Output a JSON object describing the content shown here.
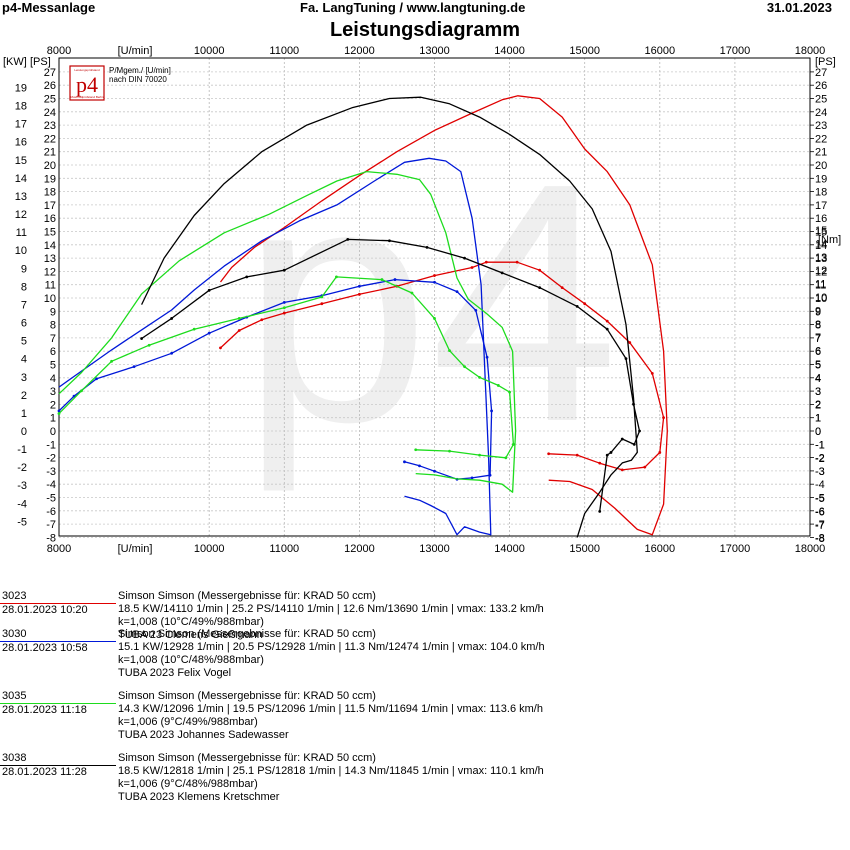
{
  "header": {
    "left": "p4-Messanlage",
    "center": "Fa. LangTuning /   www.langtuning.de",
    "date": "31.01.2023",
    "title": "Leistungsdiagramm"
  },
  "logo": {
    "mark": "p4",
    "line1": "P/Mgem./ [U/min]",
    "line2": "nach DIN 70020",
    "small_top": "Leistungsprüfstand",
    "small_bottom": "Motorradprüfstand Berlin"
  },
  "watermark": "p4",
  "colors": {
    "red": "#e00000",
    "blue": "#0018d8",
    "green": "#1ddc1d",
    "black": "#000000"
  },
  "chart_data": {
    "type": "line",
    "x_unit_label": "[U/min]",
    "xlim": [
      8000,
      18000
    ],
    "x_ticks": [
      8000,
      10000,
      11000,
      12000,
      13000,
      14000,
      15000,
      16000,
      17000,
      18000
    ],
    "left_kw_label": "[KW]",
    "left_ps_label": "[PS]",
    "right_ps_label": "[PS]",
    "right_nm_label": "[Nm]",
    "kw_ticks": [
      -5,
      -4,
      -3,
      -2,
      -1,
      0,
      1,
      2,
      3,
      4,
      5,
      6,
      7,
      8,
      9,
      10,
      11,
      12,
      13,
      14,
      15,
      16,
      17,
      18,
      19
    ],
    "ps_ticks": [
      -8,
      -7,
      -6,
      -5,
      -4,
      -3,
      -2,
      -1,
      0,
      1,
      2,
      3,
      4,
      5,
      6,
      7,
      8,
      9,
      10,
      11,
      12,
      13,
      14,
      15,
      16,
      17,
      18,
      19,
      20,
      21,
      22,
      23,
      24,
      25,
      26,
      27
    ],
    "right_ps_ticks": [
      -8,
      -7,
      -6,
      -5,
      -4,
      -3,
      -2,
      -1,
      0,
      1,
      2,
      3,
      4,
      5,
      6,
      7,
      8,
      9,
      10,
      11,
      12,
      13,
      14,
      15,
      16,
      17,
      18,
      19,
      20,
      21,
      22,
      23,
      24,
      25,
      26,
      27
    ],
    "nm_ticks": [
      -8,
      -7,
      -6,
      -5,
      -3,
      -2,
      -1,
      0,
      1,
      2,
      3,
      4,
      5,
      6,
      7,
      8,
      9,
      10,
      11,
      12,
      13,
      14,
      15
    ],
    "grid": true,
    "series": [
      {
        "name": "3023",
        "color": "#e00000",
        "power_ps": [
          [
            10150,
            11.2
          ],
          [
            10300,
            12.3
          ],
          [
            10600,
            13.8
          ],
          [
            11000,
            15.3
          ],
          [
            11500,
            17.3
          ],
          [
            12000,
            19.2
          ],
          [
            12500,
            21.0
          ],
          [
            13000,
            22.6
          ],
          [
            13500,
            23.9
          ],
          [
            13900,
            24.9
          ],
          [
            14110,
            25.2
          ],
          [
            14400,
            25.0
          ],
          [
            14700,
            23.6
          ],
          [
            15000,
            21.2
          ],
          [
            15300,
            19.5
          ],
          [
            15600,
            17.0
          ],
          [
            15900,
            12.5
          ],
          [
            16050,
            6.0
          ],
          [
            16100,
            0.0
          ],
          [
            16050,
            -5.5
          ],
          [
            15900,
            -7.8
          ],
          [
            15700,
            -7.4
          ],
          [
            15400,
            -5.8
          ],
          [
            15100,
            -4.4
          ],
          [
            14800,
            -3.8
          ],
          [
            14520,
            -3.7
          ]
        ],
        "torque_nm": [
          [
            10150,
            6.2
          ],
          [
            10400,
            7.5
          ],
          [
            10700,
            8.3
          ],
          [
            11000,
            8.8
          ],
          [
            11500,
            9.5
          ],
          [
            12000,
            10.2
          ],
          [
            12500,
            10.8
          ],
          [
            13000,
            11.6
          ],
          [
            13500,
            12.2
          ],
          [
            13690,
            12.6
          ],
          [
            14100,
            12.6
          ],
          [
            14400,
            12.0
          ],
          [
            14700,
            10.7
          ],
          [
            15000,
            9.5
          ],
          [
            15300,
            8.2
          ],
          [
            15600,
            6.6
          ],
          [
            15900,
            4.3
          ],
          [
            16050,
            1.0
          ],
          [
            16000,
            -1.6
          ],
          [
            15800,
            -2.7
          ],
          [
            15500,
            -2.9
          ],
          [
            15200,
            -2.4
          ],
          [
            14900,
            -1.8
          ],
          [
            14520,
            -1.7
          ]
        ]
      },
      {
        "name": "3030",
        "color": "#0018d8",
        "power_ps": [
          [
            8000,
            3.3
          ],
          [
            8300,
            4.5
          ],
          [
            8700,
            6.1
          ],
          [
            9100,
            7.6
          ],
          [
            9500,
            9.1
          ],
          [
            9800,
            10.6
          ],
          [
            10200,
            12.4
          ],
          [
            10700,
            14.3
          ],
          [
            11200,
            15.8
          ],
          [
            11700,
            17.0
          ],
          [
            12200,
            18.8
          ],
          [
            12600,
            20.2
          ],
          [
            12928,
            20.5
          ],
          [
            13150,
            20.3
          ],
          [
            13350,
            19.5
          ],
          [
            13500,
            16.0
          ],
          [
            13620,
            11.0
          ],
          [
            13720,
            -2.0
          ],
          [
            13750,
            -7.8
          ],
          [
            13600,
            -7.6
          ],
          [
            13400,
            -7.2
          ],
          [
            13300,
            -7.8
          ],
          [
            13150,
            -6.2
          ],
          [
            12950,
            -5.6
          ],
          [
            12800,
            -5.2
          ],
          [
            12600,
            -4.9
          ]
        ],
        "torque_nm": [
          [
            8000,
            1.5
          ],
          [
            8200,
            2.6
          ],
          [
            8500,
            3.9
          ],
          [
            9000,
            4.8
          ],
          [
            9500,
            5.8
          ],
          [
            10000,
            7.3
          ],
          [
            10500,
            8.5
          ],
          [
            11000,
            9.6
          ],
          [
            11500,
            10.1
          ],
          [
            12000,
            10.8
          ],
          [
            12474,
            11.3
          ],
          [
            13000,
            11.1
          ],
          [
            13300,
            10.4
          ],
          [
            13550,
            9.0
          ],
          [
            13700,
            5.5
          ],
          [
            13760,
            1.5
          ],
          [
            13740,
            -3.3
          ],
          [
            13500,
            -3.5
          ],
          [
            13300,
            -3.6
          ],
          [
            13000,
            -3.0
          ],
          [
            12800,
            -2.6
          ],
          [
            12600,
            -2.3
          ]
        ]
      },
      {
        "name": "3035",
        "color": "#1ddc1d",
        "power_ps": [
          [
            8000,
            2.8
          ],
          [
            8300,
            4.4
          ],
          [
            8700,
            7.0
          ],
          [
            9100,
            10.3
          ],
          [
            9600,
            12.8
          ],
          [
            10200,
            14.9
          ],
          [
            10800,
            16.3
          ],
          [
            11300,
            17.7
          ],
          [
            11700,
            18.8
          ],
          [
            12096,
            19.5
          ],
          [
            12500,
            19.3
          ],
          [
            12800,
            18.9
          ],
          [
            12950,
            17.8
          ],
          [
            13150,
            14.9
          ],
          [
            13300,
            11.5
          ],
          [
            13450,
            9.9
          ],
          [
            13700,
            8.8
          ],
          [
            13900,
            7.8
          ],
          [
            14040,
            6.0
          ],
          [
            14080,
            0.0
          ],
          [
            14040,
            -4.6
          ],
          [
            13900,
            -4.0
          ],
          [
            13600,
            -3.7
          ],
          [
            13300,
            -3.6
          ],
          [
            13000,
            -3.3
          ],
          [
            12750,
            -3.2
          ]
        ],
        "torque_nm": [
          [
            8000,
            1.3
          ],
          [
            8300,
            3.0
          ],
          [
            8700,
            5.2
          ],
          [
            9200,
            6.4
          ],
          [
            9800,
            7.6
          ],
          [
            10400,
            8.4
          ],
          [
            11000,
            9.2
          ],
          [
            11500,
            10.0
          ],
          [
            11694,
            11.5
          ],
          [
            12300,
            11.3
          ],
          [
            12700,
            10.3
          ],
          [
            13000,
            8.4
          ],
          [
            13200,
            6.0
          ],
          [
            13400,
            4.8
          ],
          [
            13600,
            4.0
          ],
          [
            13850,
            3.4
          ],
          [
            14000,
            2.9
          ],
          [
            14050,
            -1.0
          ],
          [
            13950,
            -2.0
          ],
          [
            13600,
            -1.8
          ],
          [
            13200,
            -1.5
          ],
          [
            12750,
            -1.4
          ]
        ]
      },
      {
        "name": "3038",
        "color": "#000000",
        "power_ps": [
          [
            9100,
            9.5
          ],
          [
            9400,
            13.0
          ],
          [
            9800,
            16.2
          ],
          [
            10200,
            18.6
          ],
          [
            10700,
            21.0
          ],
          [
            11300,
            23.0
          ],
          [
            11900,
            24.3
          ],
          [
            12400,
            25.0
          ],
          [
            12818,
            25.1
          ],
          [
            13200,
            24.6
          ],
          [
            13600,
            23.6
          ],
          [
            14000,
            22.3
          ],
          [
            14400,
            20.8
          ],
          [
            14800,
            18.8
          ],
          [
            15100,
            16.7
          ],
          [
            15350,
            13.5
          ],
          [
            15550,
            8.0
          ],
          [
            15650,
            2.5
          ],
          [
            15700,
            -1.6
          ],
          [
            15620,
            -2.2
          ],
          [
            15500,
            -2.4
          ],
          [
            15350,
            -3.3
          ],
          [
            15200,
            -4.6
          ],
          [
            15000,
            -6.2
          ],
          [
            14900,
            -8.0
          ]
        ],
        "torque_nm": [
          [
            9100,
            6.9
          ],
          [
            9500,
            8.4
          ],
          [
            10000,
            10.5
          ],
          [
            10500,
            11.5
          ],
          [
            11000,
            12.0
          ],
          [
            11845,
            14.3
          ],
          [
            12400,
            14.2
          ],
          [
            12900,
            13.7
          ],
          [
            13400,
            12.9
          ],
          [
            13900,
            11.8
          ],
          [
            14400,
            10.7
          ],
          [
            14900,
            9.3
          ],
          [
            15300,
            7.6
          ],
          [
            15550,
            5.4
          ],
          [
            15650,
            2.0
          ],
          [
            15730,
            0.0
          ],
          [
            15660,
            -1.0
          ],
          [
            15500,
            -0.6
          ],
          [
            15350,
            -1.6
          ],
          [
            15300,
            -1.8
          ],
          [
            15200,
            -6.0
          ]
        ]
      }
    ]
  },
  "runs": [
    {
      "id": "3023",
      "datetime": "28.01.2023  10:20",
      "color": "#e00000",
      "title": "Simson Simson (Messergebnisse für: KRAD 50 ccm)",
      "stats": "18.5 KW/14110 1/min  |  25.2 PS/14110 1/min  |  12.6 Nm/13690 1/min  |  vmax: 133.2 km/h",
      "cond": "k=1,008 (10°C/49%/988mbar)",
      "driver": "TUBA 23 Clemens Gießmann"
    },
    {
      "id": "3030",
      "datetime": "28.01.2023  10:58",
      "color": "#0018d8",
      "title": "Simson Simson (Messergebnisse für: KRAD 50 ccm)",
      "stats": "15.1 KW/12928 1/min  |  20.5 PS/12928 1/min  |  11.3 Nm/12474 1/min  |  vmax: 104.0 km/h",
      "cond": "k=1,008 (10°C/48%/988mbar)",
      "driver": "TUBA 2023 Felix Vogel"
    },
    {
      "id": "3035",
      "datetime": "28.01.2023  11:18",
      "color": "#1ddc1d",
      "title": "Simson Simson (Messergebnisse für: KRAD 50 ccm)",
      "stats": "14.3 KW/12096 1/min  |  19.5 PS/12096 1/min  |  11.5 Nm/11694 1/min  |  vmax: 113.6 km/h",
      "cond": "k=1,006 (9°C/49%/988mbar)",
      "driver": "TUBA 2023 Johannes Sadewasser"
    },
    {
      "id": "3038",
      "datetime": "28.01.2023  11:28",
      "color": "#000000",
      "title": "Simson Simson (Messergebnisse für: KRAD 50 ccm)",
      "stats": "18.5 KW/12818 1/min  |  25.1 PS/12818 1/min  |  14.3 Nm/11845 1/min  |  vmax: 110.1 km/h",
      "cond": "k=1,006 (9°C/48%/988mbar)",
      "driver": "TUBA 2023 Klemens Kretschmer"
    }
  ]
}
